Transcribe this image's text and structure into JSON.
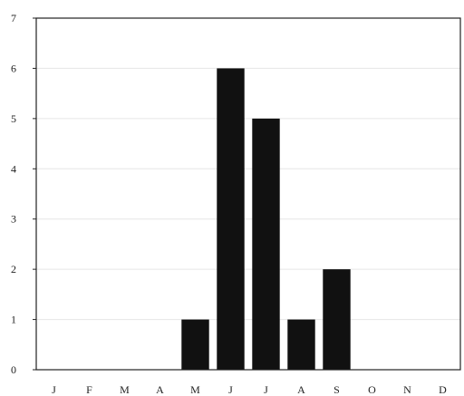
{
  "chart_data": {
    "type": "bar",
    "categories": [
      "J",
      "F",
      "M",
      "A",
      "M",
      "J",
      "J",
      "A",
      "S",
      "O",
      "N",
      "D"
    ],
    "values": [
      0,
      0,
      0,
      0,
      1,
      6,
      5,
      1,
      2,
      0,
      0,
      0
    ],
    "title": "",
    "xlabel": "",
    "ylabel": "",
    "ylim": [
      0,
      7
    ],
    "yticks": [
      "0",
      "1",
      "2",
      "3",
      "4",
      "5",
      "6",
      "7"
    ],
    "grid": "horizontal",
    "legend": "none",
    "colors": {
      "bar": "#111111",
      "axis": "#222222",
      "grid": "#e6e6e6",
      "background": "#ffffff"
    }
  }
}
